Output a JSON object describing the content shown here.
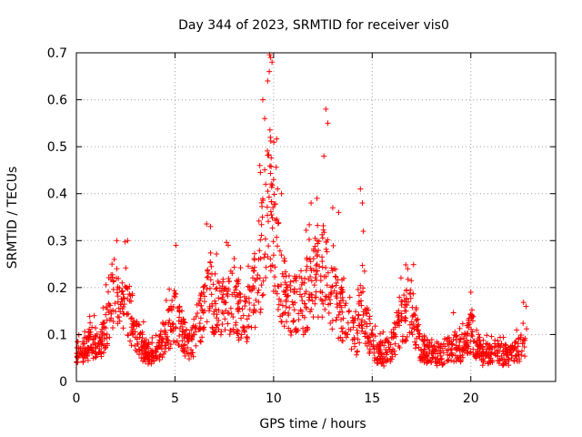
{
  "chart_data": {
    "type": "scatter",
    "title": "Day 344 of 2023, SRMTID for receiver vis0",
    "xlabel": "GPS time / hours",
    "ylabel": "SRMTID / TECUs",
    "xlim": [
      0,
      24.3
    ],
    "ylim": [
      0,
      0.7
    ],
    "xticks": [
      0,
      5,
      10,
      15,
      20
    ],
    "xtick_labels": [
      "0",
      "5",
      "10",
      "15",
      "20"
    ],
    "yticks": [
      0,
      0.1,
      0.2,
      0.3,
      0.4,
      0.5,
      0.6,
      0.7
    ],
    "ytick_labels": [
      "0",
      "0.1",
      "0.2",
      "0.3",
      "0.4",
      "0.5",
      "0.6",
      "0.7"
    ],
    "grid": true,
    "marker": "plus",
    "series": [
      {
        "name": "vis0",
        "color": "#ff0000",
        "profile": [
          [
            0.0,
            0.07
          ],
          [
            0.4,
            0.07
          ],
          [
            0.8,
            0.09
          ],
          [
            1.2,
            0.08
          ],
          [
            1.6,
            0.14
          ],
          [
            1.9,
            0.21
          ],
          [
            2.2,
            0.15
          ],
          [
            2.6,
            0.17
          ],
          [
            3.0,
            0.1
          ],
          [
            3.5,
            0.07
          ],
          [
            4.0,
            0.06
          ],
          [
            4.5,
            0.1
          ],
          [
            5.0,
            0.15
          ],
          [
            5.4,
            0.1
          ],
          [
            5.8,
            0.08
          ],
          [
            6.2,
            0.13
          ],
          [
            6.7,
            0.2
          ],
          [
            7.2,
            0.16
          ],
          [
            7.7,
            0.18
          ],
          [
            8.2,
            0.16
          ],
          [
            8.7,
            0.15
          ],
          [
            9.0,
            0.19
          ],
          [
            9.3,
            0.26
          ],
          [
            9.6,
            0.35
          ],
          [
            9.8,
            0.42
          ],
          [
            10.0,
            0.33
          ],
          [
            10.3,
            0.24
          ],
          [
            10.6,
            0.19
          ],
          [
            11.0,
            0.16
          ],
          [
            11.5,
            0.18
          ],
          [
            12.0,
            0.22
          ],
          [
            12.5,
            0.25
          ],
          [
            12.8,
            0.22
          ],
          [
            13.3,
            0.16
          ],
          [
            13.8,
            0.13
          ],
          [
            14.2,
            0.1
          ],
          [
            14.5,
            0.18
          ],
          [
            14.8,
            0.11
          ],
          [
            15.2,
            0.07
          ],
          [
            15.6,
            0.06
          ],
          [
            16.0,
            0.08
          ],
          [
            16.5,
            0.13
          ],
          [
            17.0,
            0.17
          ],
          [
            17.4,
            0.08
          ],
          [
            18.0,
            0.06
          ],
          [
            18.5,
            0.06
          ],
          [
            19.0,
            0.08
          ],
          [
            19.5,
            0.07
          ],
          [
            20.0,
            0.11
          ],
          [
            20.5,
            0.06
          ],
          [
            21.0,
            0.06
          ],
          [
            21.5,
            0.06
          ],
          [
            22.0,
            0.06
          ],
          [
            22.5,
            0.07
          ],
          [
            22.8,
            0.1
          ]
        ],
        "spikes": [
          [
            1.92,
            0.26
          ],
          [
            2.05,
            0.3
          ],
          [
            2.6,
            0.3
          ],
          [
            5.05,
            0.29
          ],
          [
            6.8,
            0.33
          ],
          [
            7.7,
            0.29
          ],
          [
            9.3,
            0.46
          ],
          [
            9.45,
            0.6
          ],
          [
            9.55,
            0.56
          ],
          [
            9.7,
            0.64
          ],
          [
            9.78,
            0.66
          ],
          [
            9.85,
            0.69
          ],
          [
            9.92,
            0.68
          ],
          [
            10.0,
            0.43
          ],
          [
            10.2,
            0.41
          ],
          [
            10.4,
            0.4
          ],
          [
            11.9,
            0.38
          ],
          [
            12.2,
            0.39
          ],
          [
            12.55,
            0.48
          ],
          [
            12.65,
            0.58
          ],
          [
            12.75,
            0.55
          ],
          [
            13.0,
            0.37
          ],
          [
            13.3,
            0.36
          ],
          [
            14.4,
            0.41
          ],
          [
            14.5,
            0.38
          ],
          [
            14.55,
            0.32
          ],
          [
            16.8,
            0.24
          ],
          [
            20.0,
            0.19
          ],
          [
            22.8,
            0.16
          ]
        ],
        "start_hour": 0,
        "end_hour": 22.85,
        "sample_count": 1700
      }
    ]
  }
}
